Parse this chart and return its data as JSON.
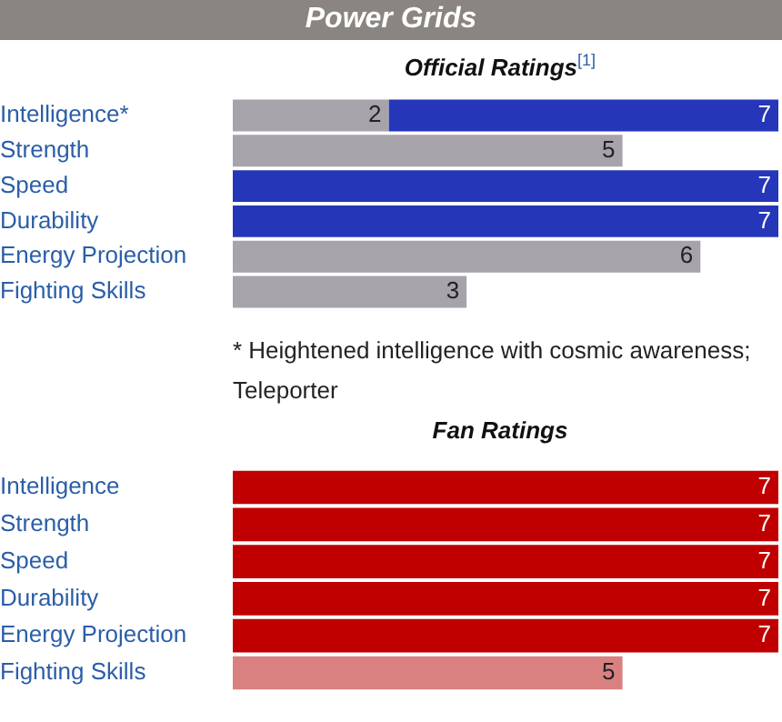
{
  "chart_data": [
    {
      "type": "bar",
      "title": "Power Grids",
      "subtitle": "Official Ratings$^{[1]}$",
      "orientation": "horizontal",
      "stacked": true,
      "categories": [
        "Intelligence*",
        "Strength",
        "Speed",
        "Durability",
        "Energy Projection",
        "Fighting Skills"
      ],
      "series": [
        {
          "color": "#a6a3ab",
          "values": [
            2,
            5,
            null,
            null,
            6,
            3
          ],
          "value_labels": [
            "2",
            "5",
            null,
            null,
            "6",
            "3"
          ]
        },
        {
          "color": "#2536b8",
          "values": [
            5,
            null,
            7,
            7,
            null,
            null
          ]
        }
      ],
      "totals": [
        "7",
        null,
        "7",
        "7",
        null,
        null
      ],
      "xlim": [
        0,
        7
      ],
      "tick_labels": "y",
      "grid": false,
      "legend": false,
      "annotations": [
        "* Heightened intelligence with cosmic awareness; Teleporter"
      ]
    },
    {
      "type": "bar",
      "subtitle": "Fan Ratings",
      "orientation": "horizontal",
      "categories": [
        "Intelligence",
        "Strength",
        "Speed",
        "Durability",
        "Energy Projection",
        "Fighting Skills"
      ],
      "values": [
        7,
        7,
        7,
        7,
        7,
        5
      ],
      "colors": [
        "#c00000",
        "#c00000",
        "#c00000",
        "#c00000",
        "#c00000",
        "#d98080"
      ],
      "xlim": [
        0,
        7
      ],
      "tick_labels": "y",
      "grid": false,
      "legend": false,
      "data_labels": true
    }
  ]
}
